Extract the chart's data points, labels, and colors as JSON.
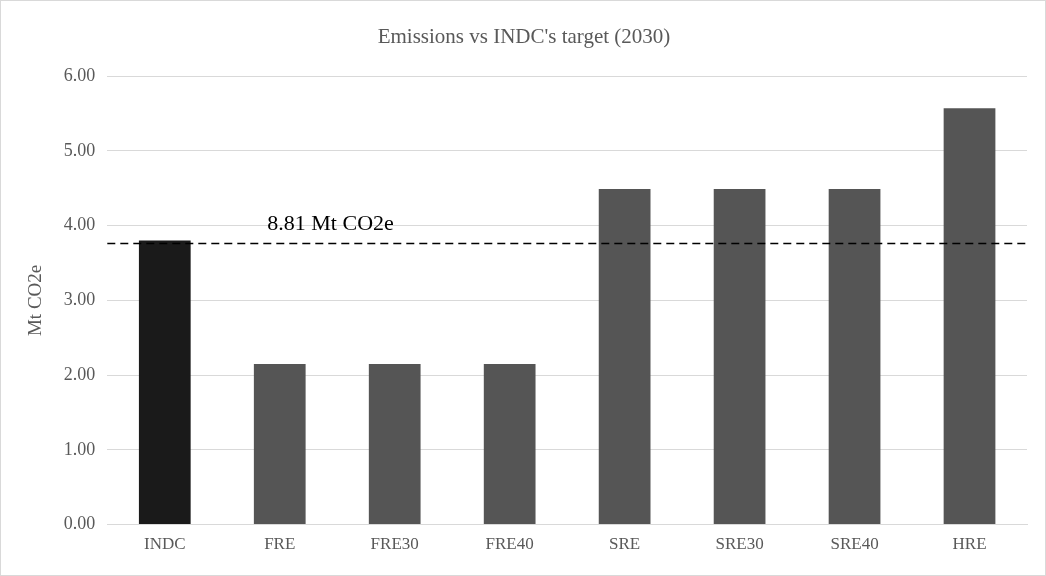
{
  "chart_data": {
    "type": "bar",
    "title": "Emissions vs INDC's target (2030)",
    "ylabel": "Mt CO2e",
    "categories": [
      "INDC",
      "FRE",
      "FRE30",
      "FRE40",
      "SRE",
      "SRE30",
      "SRE40",
      "HRE"
    ],
    "values": [
      3.8,
      2.15,
      2.15,
      2.15,
      4.49,
      4.49,
      4.49,
      5.57
    ],
    "colors": [
      "#1a1a1a",
      "#555555",
      "#555555",
      "#555555",
      "#555555",
      "#555555",
      "#555555",
      "#555555"
    ],
    "ylim": [
      0,
      6
    ],
    "yticks": [
      {
        "value": 0,
        "label": "0.00"
      },
      {
        "value": 1,
        "label": "1.00"
      },
      {
        "value": 2,
        "label": "2.00"
      },
      {
        "value": 3,
        "label": "3.00"
      },
      {
        "value": 4,
        "label": "4.00"
      },
      {
        "value": 5,
        "label": "5.00"
      },
      {
        "value": 6,
        "label": "6.00"
      }
    ],
    "grid": "y",
    "ref_lines": [
      {
        "axis": "y",
        "value": 3.76,
        "label": "8.81 Mt CO2e",
        "color": "#000000",
        "line_style": "dashed"
      }
    ]
  }
}
